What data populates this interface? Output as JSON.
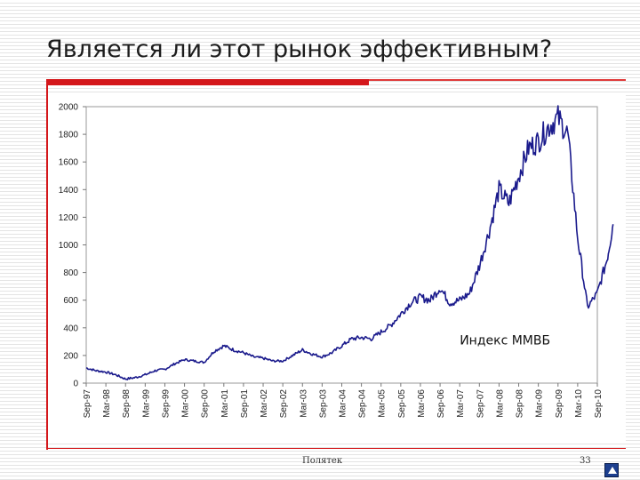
{
  "slide": {
    "title": "Является ли этот рынок эффективным?",
    "footer_center": "Полятек",
    "page_number": "33"
  },
  "chart_data": {
    "type": "line",
    "title": "",
    "xlabel": "",
    "ylabel": "",
    "ylim": [
      0,
      2000
    ],
    "yticks": [
      0,
      200,
      400,
      600,
      800,
      1000,
      1200,
      1400,
      1600,
      1800,
      2000
    ],
    "grid": false,
    "legend": "none",
    "annotation": "Индекс ММВБ",
    "color": "#1a1a8c",
    "xticks": [
      "Sep-97",
      "Mar-98",
      "Sep-98",
      "Mar-99",
      "Sep-99",
      "Mar-00",
      "Sep-00",
      "Mar-01",
      "Sep-01",
      "Mar-02",
      "Sep-02",
      "Mar-03",
      "Sep-03",
      "Mar-04",
      "Sep-04",
      "Mar-05",
      "Sep-05",
      "Mar-06",
      "Sep-06",
      "Mar-07",
      "Sep-07",
      "Mar-08",
      "Sep-08",
      "Mar-09",
      "Sep-09",
      "Mar-10",
      "Sep-10"
    ],
    "series": [
      {
        "x": [
          0,
          0.5,
          1,
          1.5,
          2,
          2.5,
          3,
          3.5,
          4,
          4.5,
          5,
          5.5,
          6,
          6.5,
          7,
          7.5,
          8,
          8.5,
          9,
          9.5,
          10,
          10.5,
          11,
          11.5,
          12,
          12.5,
          13,
          13.5,
          14,
          14.5,
          15,
          15.5,
          16,
          16.5,
          17,
          17.5,
          18,
          18.5,
          19,
          19.5,
          20,
          20.5,
          21,
          21.5,
          22,
          22.5,
          23,
          23.5,
          24,
          24.5,
          25,
          25.5,
          26,
          26.5,
          26.8
        ],
        "values": [
          110,
          90,
          80,
          60,
          30,
          40,
          60,
          90,
          100,
          140,
          170,
          160,
          150,
          230,
          270,
          240,
          220,
          190,
          180,
          160,
          160,
          200,
          240,
          210,
          190,
          220,
          270,
          320,
          330,
          320,
          370,
          420,
          500,
          580,
          620,
          600,
          690,
          580,
          600,
          650,
          850,
          1100,
          1400,
          1300,
          1500,
          1700,
          1750,
          1850,
          1920,
          1800,
          1050,
          550,
          650,
          900,
          1150
        ]
      }
    ]
  }
}
